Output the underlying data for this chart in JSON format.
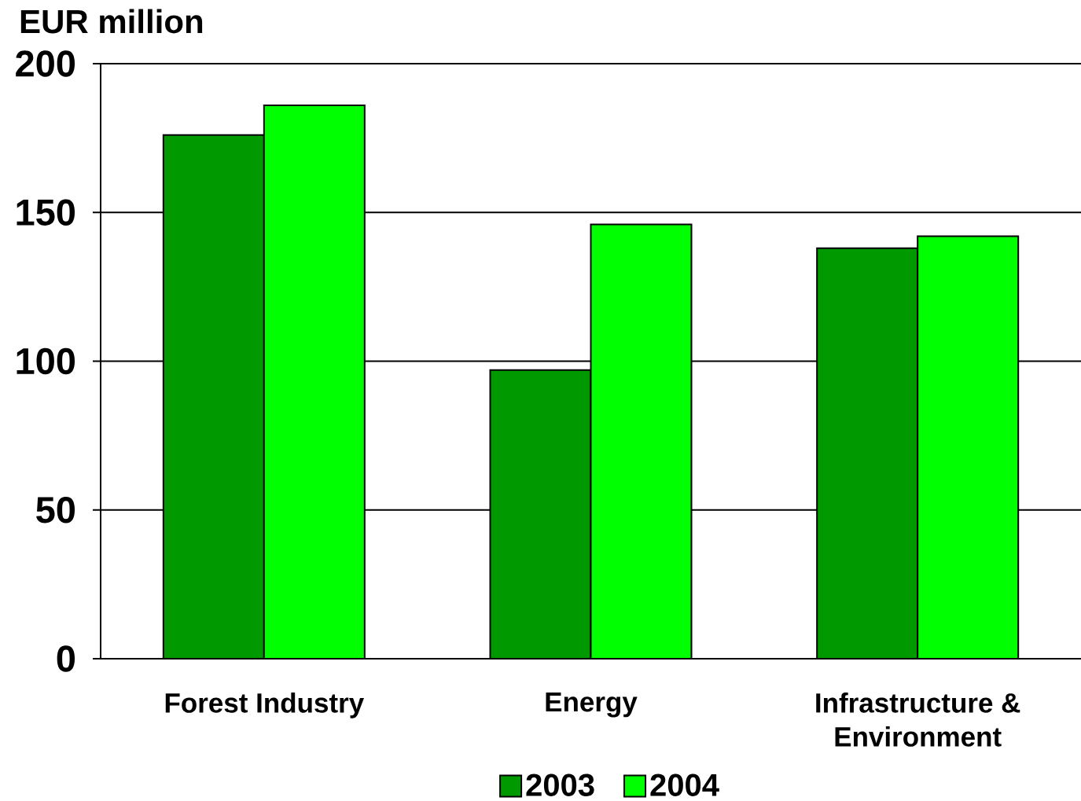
{
  "chart_data": {
    "type": "bar",
    "ylabel": "EUR million",
    "categories": [
      "Forest Industry",
      "Energy",
      "Infrastructure & Environment"
    ],
    "series": [
      {
        "name": "2003",
        "color": "#009900",
        "values": [
          176,
          97,
          138
        ]
      },
      {
        "name": "2004",
        "color": "#00ff00",
        "values": [
          186,
          146,
          142
        ]
      }
    ],
    "ylim": [
      0,
      200
    ],
    "yticks": [
      0,
      50,
      100,
      150,
      200
    ],
    "grid": "y",
    "legend": "bottom"
  }
}
